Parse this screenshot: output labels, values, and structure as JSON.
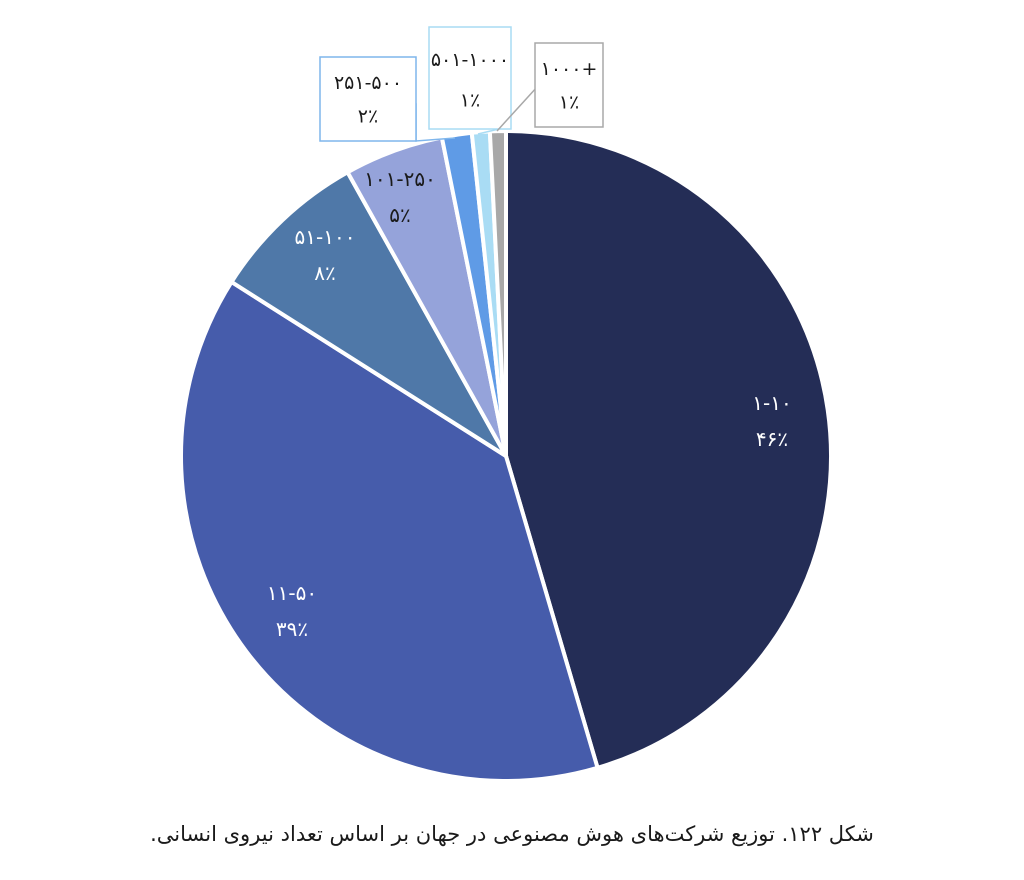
{
  "caption": "شکل ۱۲۲. توزیع شرکت‌های هوش مصنوعی در جهان بر اساس تعداد نیروی انسانی.",
  "chart_data": {
    "type": "pie",
    "title": "",
    "slices": [
      {
        "label": "۱-۱۰",
        "percent_label": "۴۶٪",
        "value": 46,
        "color": "#242d56",
        "label_color": "#ffffff"
      },
      {
        "label": "۱۱-۵۰",
        "percent_label": "۳۹٪",
        "value": 39,
        "color": "#465cab",
        "label_color": "#ffffff"
      },
      {
        "label": "۵۱-۱۰۰",
        "percent_label": "۸٪",
        "value": 8,
        "color": "#4f78a8",
        "label_color": "#ffffff"
      },
      {
        "label": "۱۰۱-۲۵۰",
        "percent_label": "۵٪",
        "value": 5,
        "color": "#95a3da",
        "label_color": "#1a1a1a"
      },
      {
        "label": "۲۵۱-۵۰۰",
        "percent_label": "۲٪",
        "value": 1.5,
        "color": "#5f9be6",
        "label_color": "#1a1a1a",
        "callout_border": "#7fb6ec"
      },
      {
        "label": "۵۰۱-۱۰۰۰",
        "percent_label": "۱٪",
        "value": 0.9,
        "color": "#a9dcf4",
        "label_color": "#1a1a1a",
        "callout_border": "#a9dcf4"
      },
      {
        "label": "۱۰۰۰+",
        "percent_label": "۱٪",
        "value": 0.8,
        "color": "#a8a8a8",
        "label_color": "#1a1a1a",
        "callout_border": "#a8a8a8"
      }
    ]
  }
}
